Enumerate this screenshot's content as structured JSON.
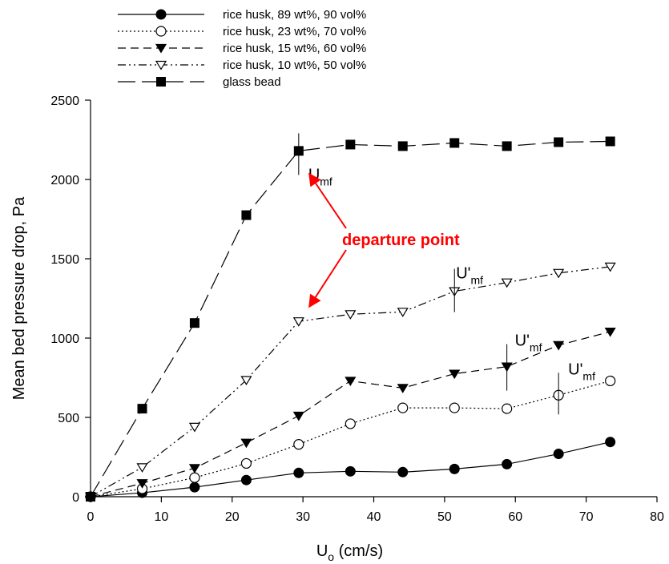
{
  "chart_data": {
    "type": "line",
    "xlabel": "U",
    "xlabel_sub": "o",
    "xlabel_unit": "(cm/s)",
    "ylabel": "Mean bed pressure drop, Pa",
    "xlim": [
      0,
      80
    ],
    "ylim": [
      0,
      2500
    ],
    "x_ticks": [
      0,
      10,
      20,
      30,
      40,
      50,
      60,
      70,
      80
    ],
    "y_ticks": [
      0,
      500,
      1000,
      1500,
      2000,
      2500
    ],
    "grid": false,
    "legend_position": "top-center",
    "series": [
      {
        "name": "rice husk, 89 wt%, 90 vol%",
        "line": "solid",
        "marker": "circle-filled",
        "x": [
          0,
          7.3,
          14.7,
          22.0,
          29.4,
          36.7,
          44.1,
          51.4,
          58.8,
          66.1,
          73.4
        ],
        "y": [
          0,
          25,
          60,
          105,
          150,
          160,
          155,
          175,
          205,
          270,
          345
        ]
      },
      {
        "name": "rice husk, 23 wt%, 70 vol%",
        "line": "dotted",
        "marker": "circle-open",
        "x": [
          0,
          7.3,
          14.7,
          22.0,
          29.4,
          36.7,
          44.1,
          51.4,
          58.8,
          66.1,
          73.4
        ],
        "y": [
          0,
          50,
          120,
          210,
          330,
          460,
          560,
          560,
          555,
          640,
          730
        ]
      },
      {
        "name": "rice husk, 15 wt%, 60 vol%",
        "line": "dashed",
        "marker": "triangle-down-filled",
        "x": [
          0,
          7.3,
          14.7,
          22.0,
          29.4,
          36.7,
          44.1,
          51.4,
          58.8,
          66.1,
          73.4
        ],
        "y": [
          0,
          85,
          180,
          340,
          510,
          730,
          685,
          775,
          820,
          955,
          1040
        ]
      },
      {
        "name": "rice husk, 10 wt%, 50 vol%",
        "line": "dash-dot-dot",
        "marker": "triangle-down-open",
        "x": [
          0,
          7.3,
          14.7,
          22.0,
          29.4,
          36.7,
          44.1,
          51.4,
          58.8,
          66.1,
          73.4
        ],
        "y": [
          0,
          185,
          440,
          735,
          1105,
          1150,
          1165,
          1295,
          1350,
          1410,
          1450
        ]
      },
      {
        "name": "glass bead",
        "line": "long-dash",
        "marker": "square-filled",
        "x": [
          0,
          7.3,
          14.7,
          22.0,
          29.4,
          36.7,
          44.1,
          51.4,
          58.8,
          66.1,
          73.4
        ],
        "y": [
          0,
          555,
          1095,
          1775,
          2180,
          2220,
          2210,
          2230,
          2210,
          2235,
          2240
        ]
      }
    ],
    "annotations": [
      {
        "id": "umf-glass",
        "text": "U",
        "sub": "mf",
        "x": 29.4,
        "y": 2180
      },
      {
        "id": "umf-10",
        "text": "U'",
        "sub": "mf",
        "x": 51.4,
        "y": 1295
      },
      {
        "id": "umf-15",
        "text": "U'",
        "sub": "mf",
        "x": 58.8,
        "y": 820
      },
      {
        "id": "umf-23",
        "text": "U'",
        "sub": "mf",
        "x": 66.1,
        "y": 640
      },
      {
        "id": "departure",
        "text": "departure point",
        "color": "#ff0000"
      }
    ]
  }
}
